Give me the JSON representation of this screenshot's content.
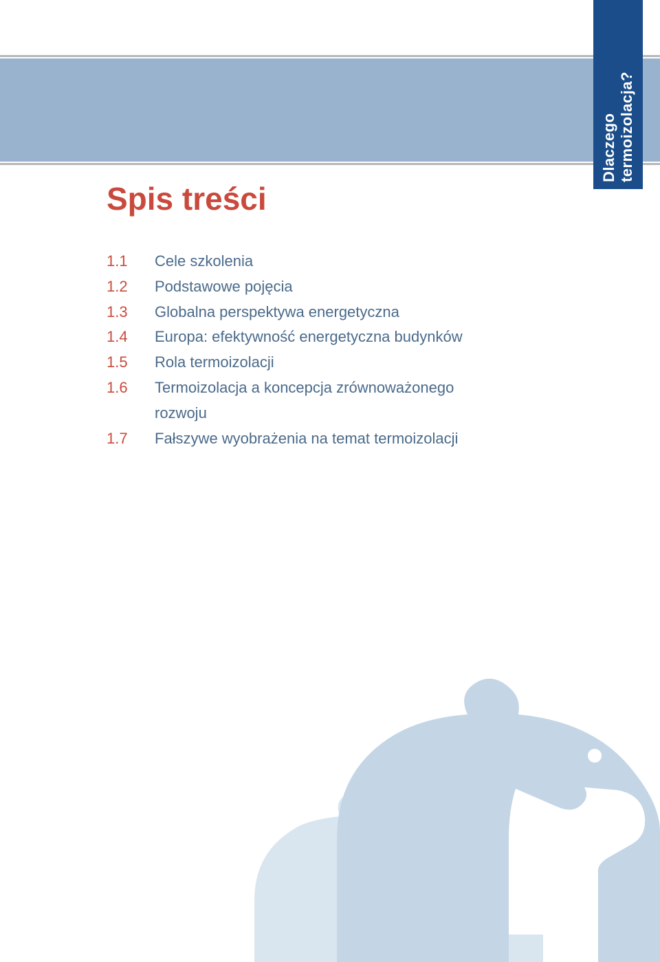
{
  "colors": {
    "title_color": "#c94a3c",
    "toc_num_color": "#c94a3c",
    "toc_text_color": "#4a6a8a",
    "tab_bg": "#1a4d8a",
    "tab_text": "#ffffff",
    "band_blue": "#99b3cf",
    "band_gray": "#b7b7b7",
    "bear_front": "#c4d6e6",
    "bear_back": "#dae6ef",
    "page_bg": "#ffffff"
  },
  "side_tab": {
    "label": "Dlaczego termoizolacja?"
  },
  "title": "Spis treści",
  "toc": [
    {
      "num": "1.1",
      "text": "Cele szkolenia"
    },
    {
      "num": "1.2",
      "text": "Podstawowe pojęcia"
    },
    {
      "num": "1.3",
      "text": "Globalna perspektywa energetyczna"
    },
    {
      "num": "1.4",
      "text": "Europa: efektywność energetyczna budynków"
    },
    {
      "num": "1.5",
      "text": "Rola termoizolacji"
    },
    {
      "num": "1.6",
      "text": "Termoizolacja a koncepcja zrównoważonego",
      "cont": "rozwoju"
    },
    {
      "num": "1.7",
      "text": "Fałszywe wyobrażenia na temat termoizolacji"
    }
  ]
}
